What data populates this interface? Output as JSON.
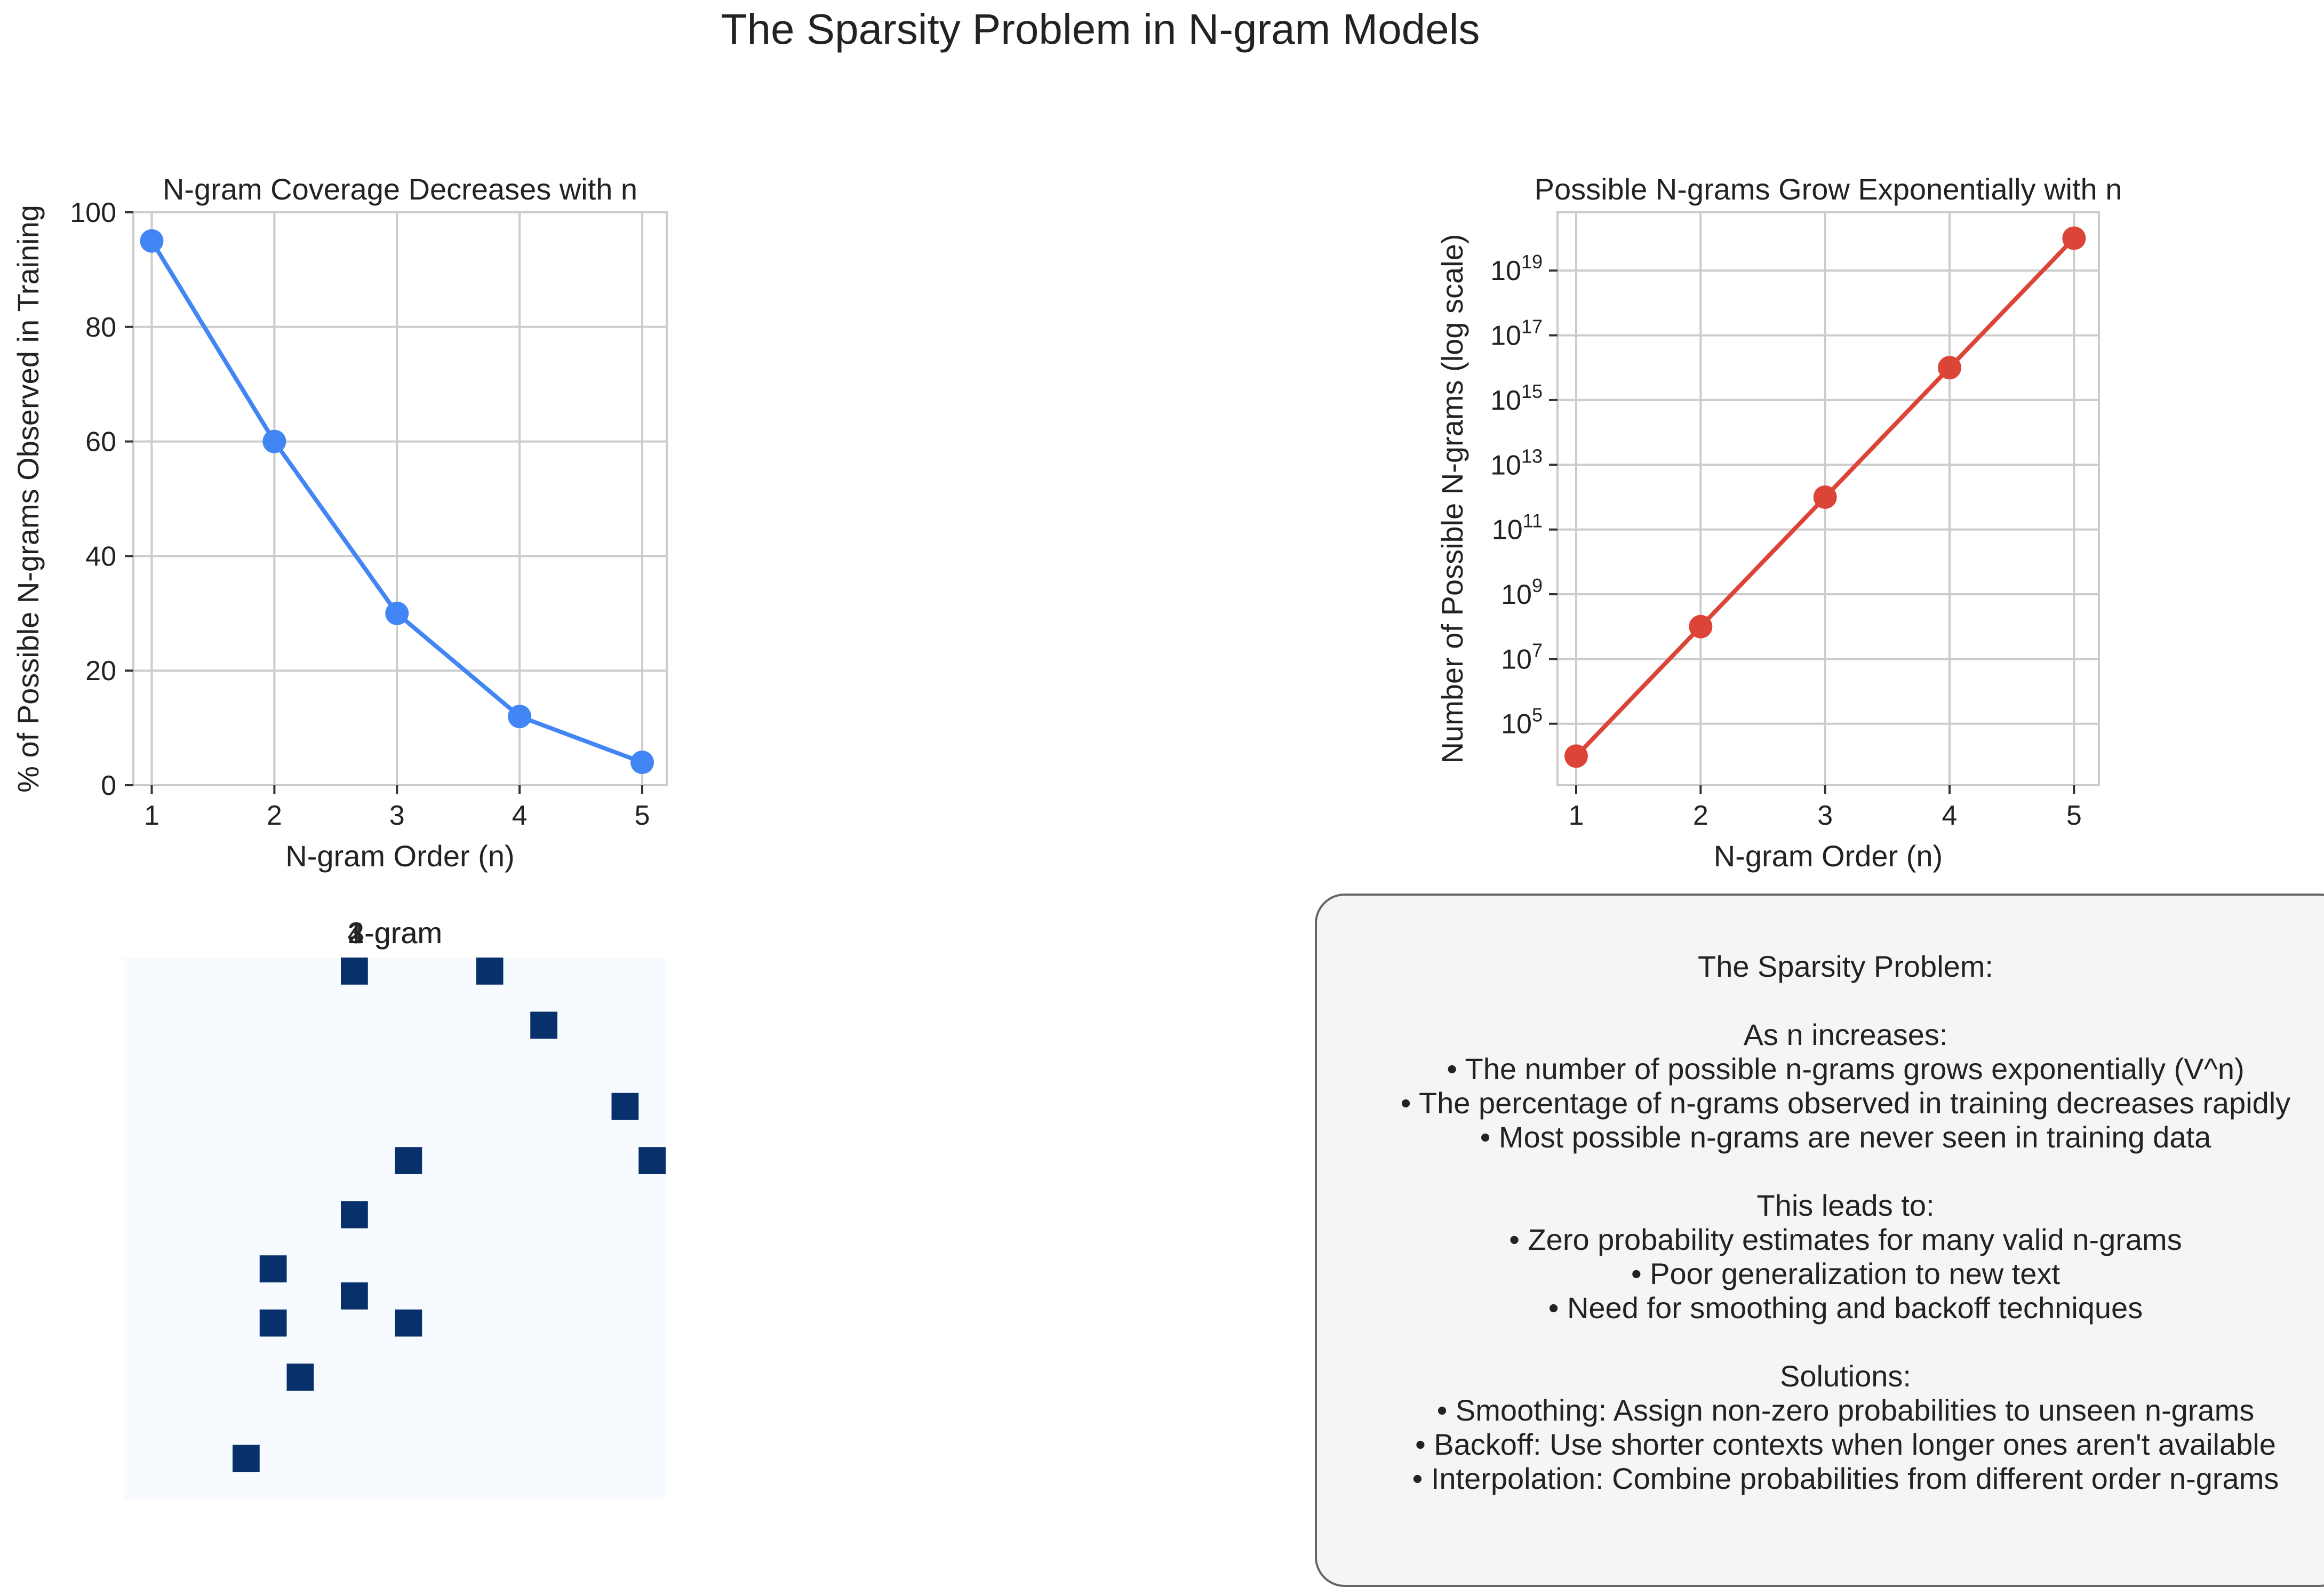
{
  "figure": {
    "title": "The Sparsity Problem in N-gram Models"
  },
  "chart_data": [
    {
      "id": "coverage",
      "type": "line",
      "title": "N-gram Coverage Decreases with n",
      "xlabel": "N-gram Order (n)",
      "ylabel": "% of Possible N-grams Observed in Training",
      "x": [
        1,
        2,
        3,
        4,
        5
      ],
      "series": [
        {
          "values": [
            95,
            60,
            30,
            12,
            4
          ],
          "color": "#4285f4"
        }
      ],
      "xlim": [
        0.85,
        5.2
      ],
      "ylim": [
        0,
        100
      ],
      "xticks": [
        1,
        2,
        3,
        4,
        5
      ],
      "yticks": [
        0,
        20,
        40,
        60,
        80,
        100
      ],
      "grid": true
    },
    {
      "id": "possible",
      "type": "line",
      "title": "Possible N-grams Grow Exponentially with n",
      "xlabel": "N-gram Order (n)",
      "ylabel": "Number of Possible N-grams (log scale)",
      "yscale": "log",
      "x": [
        1,
        2,
        3,
        4,
        5
      ],
      "series": [
        {
          "values": [
            10000,
            100000000,
            1000000000000,
            10000000000000000,
            100000000000000000000
          ],
          "color": "#db4437"
        }
      ],
      "xlim": [
        0.85,
        5.2
      ],
      "ylim_exponent": [
        3.1,
        20.8
      ],
      "xticks": [
        1,
        2,
        3,
        4,
        5
      ],
      "yticks_exponent": [
        5,
        7,
        9,
        11,
        13,
        15,
        17,
        19
      ],
      "tick_base": "10",
      "grid": true
    },
    {
      "id": "matrix",
      "type": "heatmap",
      "title": "4-gram",
      "overlapping_titles": [
        "1-gram",
        "2-gram",
        "3-gram",
        "4-gram"
      ],
      "colors": {
        "background": "#f7fbff",
        "filled": "#08306b"
      },
      "grid_size": 20,
      "filled_cells": [
        [
          0,
          8
        ],
        [
          0,
          13
        ],
        [
          2,
          15
        ],
        [
          5,
          18
        ],
        [
          7,
          10
        ],
        [
          7,
          19
        ],
        [
          9,
          8
        ],
        [
          11,
          5
        ],
        [
          12,
          8
        ],
        [
          13,
          5
        ],
        [
          13,
          10
        ],
        [
          15,
          6
        ],
        [
          18,
          4
        ]
      ]
    }
  ],
  "summary": {
    "lines": [
      "The Sparsity Problem:",
      "",
      "As n increases:",
      "• The number of possible n-grams grows exponentially (V^n)",
      "• The percentage of n-grams observed in training decreases rapidly",
      "• Most possible n-grams are never seen in training data",
      "",
      "This leads to:",
      "• Zero probability estimates for many valid n-grams",
      "• Poor generalization to new text",
      "• Need for smoothing and backoff techniques",
      "",
      "Solutions:",
      "• Smoothing: Assign non-zero probabilities to unseen n-grams",
      "• Backoff: Use shorter contexts when longer ones aren't available",
      "• Interpolation: Combine probabilities from different order n-grams"
    ]
  }
}
